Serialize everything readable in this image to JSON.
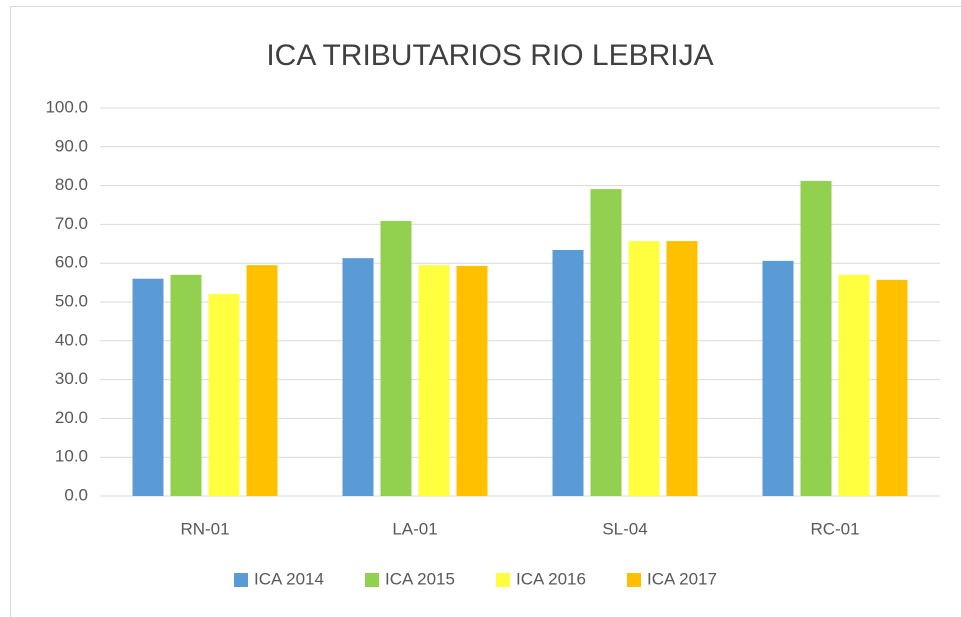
{
  "chart_data": {
    "type": "bar",
    "title": "ICA TRIBUTARIOS RIO LEBRIJA",
    "categories": [
      "RN-01",
      "LA-01",
      "SL-04",
      "RC-01"
    ],
    "series": [
      {
        "name": "ICA 2014",
        "color": "#5b9bd5",
        "values": [
          56.0,
          61.3,
          63.4,
          60.6
        ]
      },
      {
        "name": "ICA 2015",
        "color": "#92d050",
        "values": [
          57.0,
          70.9,
          79.1,
          81.2
        ]
      },
      {
        "name": "ICA 2016",
        "color": "#ffff40",
        "values": [
          52.1,
          59.5,
          65.7,
          57.0
        ]
      },
      {
        "name": "ICA 2017",
        "color": "#ffc000",
        "values": [
          59.5,
          59.3,
          65.7,
          55.7
        ]
      }
    ],
    "ylim": [
      0,
      100
    ],
    "yticks": [
      {
        "value": 0,
        "label": "0.0"
      },
      {
        "value": 10,
        "label": "10.0"
      },
      {
        "value": 20,
        "label": "20.0"
      },
      {
        "value": 30,
        "label": "30.0"
      },
      {
        "value": 40,
        "label": "40.0"
      },
      {
        "value": 50,
        "label": "50.0"
      },
      {
        "value": 60,
        "label": "60.0"
      },
      {
        "value": 70,
        "label": "70.0"
      },
      {
        "value": 80,
        "label": "80.0"
      },
      {
        "value": 90,
        "label": "90.0"
      },
      {
        "value": 100,
        "label": "100.0"
      }
    ],
    "grid": true,
    "legend": "bottom"
  }
}
